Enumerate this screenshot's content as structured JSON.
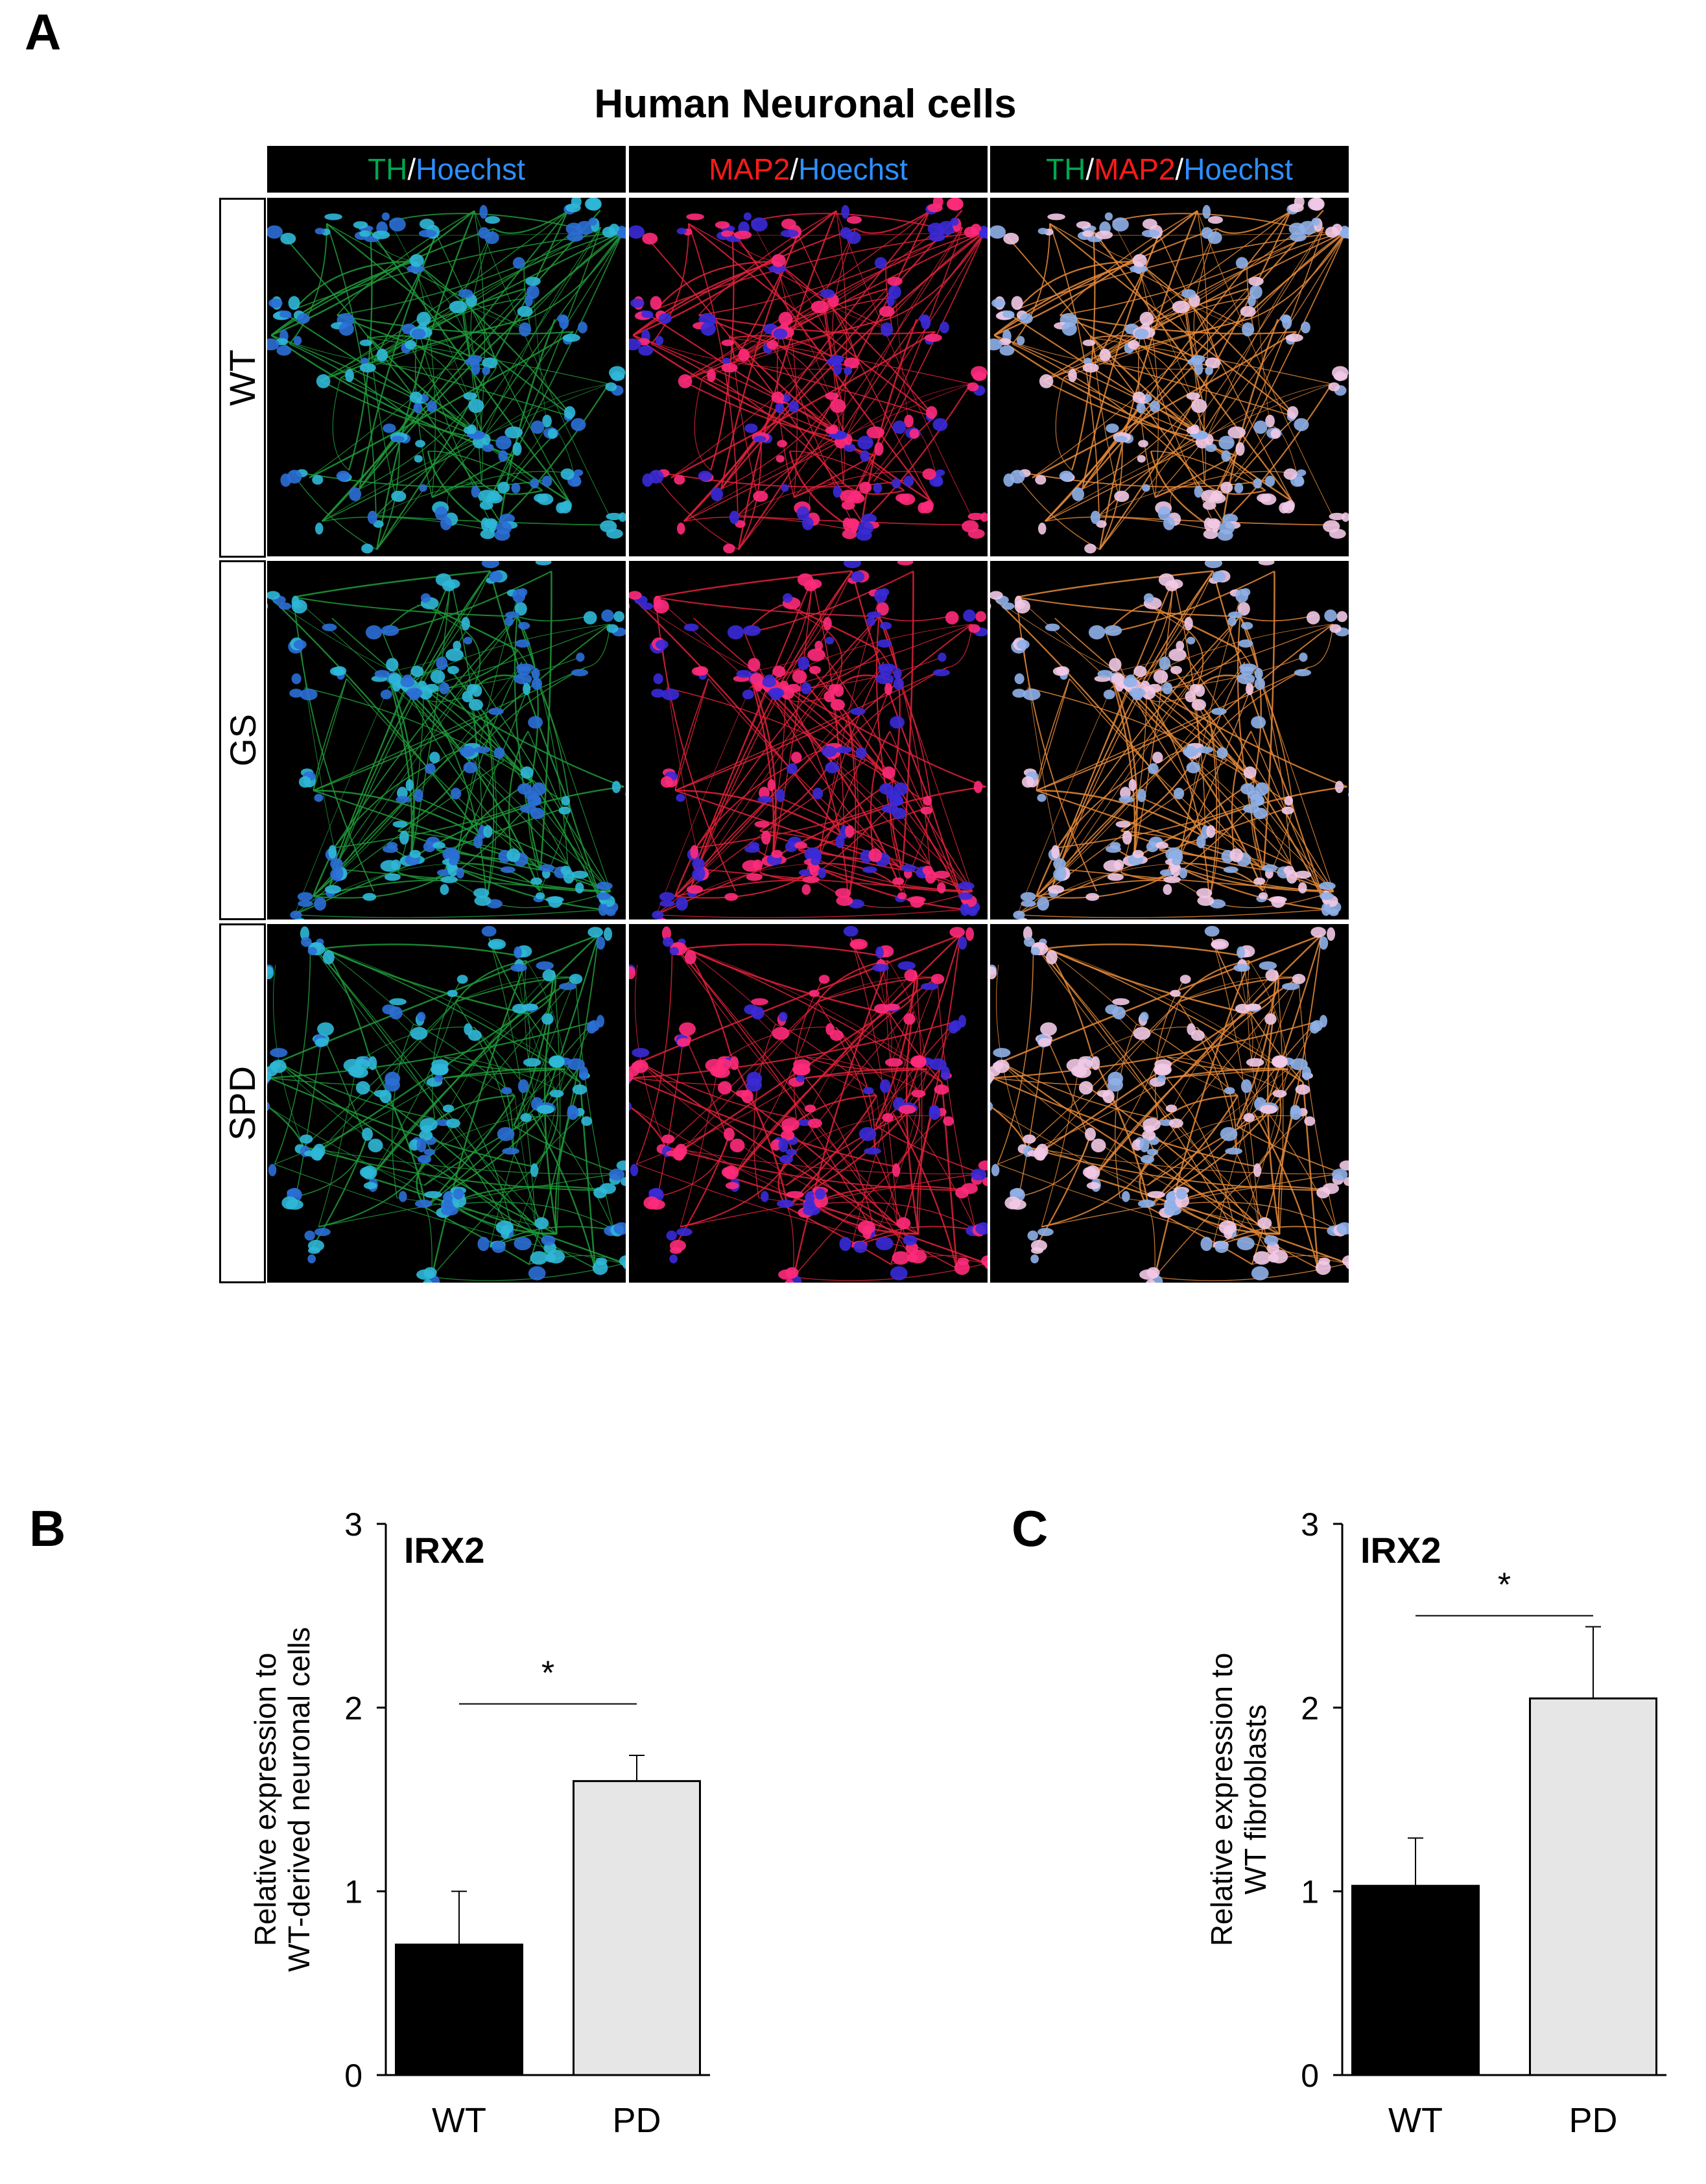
{
  "panel_letters": {
    "a": "A",
    "b": "B",
    "c": "C"
  },
  "figure_title": "Human Neuronal cells",
  "channel_headers": [
    {
      "parts": [
        {
          "text": "TH",
          "color": "#00a651"
        },
        {
          "text": "/",
          "color": "#ffffff"
        },
        {
          "text": "Hoechst",
          "color": "#2e8fff"
        }
      ]
    },
    {
      "parts": [
        {
          "text": "MAP2",
          "color": "#ff1a1a"
        },
        {
          "text": "/",
          "color": "#ffffff"
        },
        {
          "text": "Hoechst",
          "color": "#2e8fff"
        }
      ]
    },
    {
      "parts": [
        {
          "text": "TH",
          "color": "#00a651"
        },
        {
          "text": "/",
          "color": "#ffffff"
        },
        {
          "text": "MAP2",
          "color": "#ff1a1a"
        },
        {
          "text": "/",
          "color": "#ffffff"
        },
        {
          "text": "Hoechst",
          "color": "#2e8fff"
        }
      ]
    }
  ],
  "row_labels": [
    "WT",
    "GS",
    "SPD"
  ],
  "chart_data": [
    {
      "type": "bar",
      "panel": "B",
      "title": "IRX2",
      "categories": [
        "WT",
        "PD"
      ],
      "values": [
        0.71,
        1.6
      ],
      "errors": [
        0.29,
        0.14
      ],
      "bar_colors": [
        "#000000",
        "#e6e6e6"
      ],
      "ylabel": "Relative expression to\nWT-derived neuronal cells",
      "ylabel_lines": [
        "Relative expression to",
        "WT-derived neuronal cells"
      ],
      "xlabel": "",
      "ylim": [
        0,
        3
      ],
      "yticks": [
        "0",
        "1",
        "2",
        "3"
      ],
      "significance": {
        "label": "*",
        "between": [
          "WT",
          "PD"
        ],
        "y": 2.02
      }
    },
    {
      "type": "bar",
      "panel": "C",
      "title": "IRX2",
      "categories": [
        "WT",
        "PD"
      ],
      "values": [
        1.03,
        2.05
      ],
      "errors": [
        0.26,
        0.39
      ],
      "bar_colors": [
        "#000000",
        "#e6e6e6"
      ],
      "ylabel": "Relative expression to\nWT fibroblasts",
      "ylabel_lines": [
        "Relative expression to",
        "WT fibroblasts"
      ],
      "xlabel": "",
      "ylim": [
        0,
        3
      ],
      "yticks": [
        "0",
        "1",
        "2",
        "3"
      ],
      "significance": {
        "label": "*",
        "between": [
          "WT",
          "PD"
        ],
        "y": 2.5
      }
    }
  ]
}
